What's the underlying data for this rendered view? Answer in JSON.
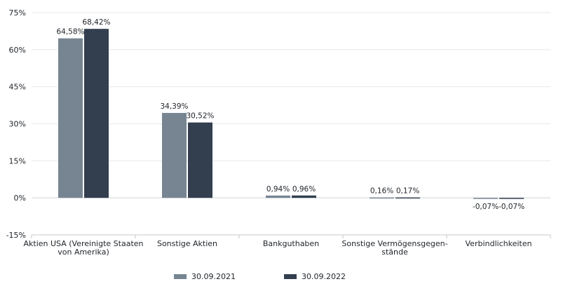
{
  "chart_data": {
    "type": "bar",
    "categories": [
      [
        "Aktien USA (Vereinigte Staaten",
        "von Amerika)"
      ],
      [
        "Sonstige Aktien"
      ],
      [
        "Bankguthaben"
      ],
      [
        "Sonstige Vermögensgegen-",
        "stände"
      ],
      [
        "Verbindlichkeiten"
      ]
    ],
    "series": [
      {
        "name": "30.09.2021",
        "color": "#778592",
        "values": [
          64.58,
          34.39,
          0.94,
          0.16,
          -0.07
        ],
        "labels": [
          "64,58%",
          "34,39%",
          "0,94%",
          "0,16%",
          "-0,07%"
        ]
      },
      {
        "name": "30.09.2022",
        "color": "#333f4f",
        "values": [
          68.42,
          30.52,
          0.96,
          0.17,
          -0.07
        ],
        "labels": [
          "68,42%",
          "30,52%",
          "0,96%",
          "0,17%",
          "-0,07%"
        ]
      }
    ],
    "ylim": [
      -15,
      75
    ],
    "yticks": [
      -15,
      0,
      15,
      30,
      45,
      60,
      75
    ],
    "ytick_labels": [
      "-15%",
      "0%",
      "15%",
      "30%",
      "45%",
      "60%",
      "75%"
    ],
    "grid": true,
    "legend_position": "bottom",
    "title": "",
    "xlabel": "",
    "ylabel": ""
  }
}
